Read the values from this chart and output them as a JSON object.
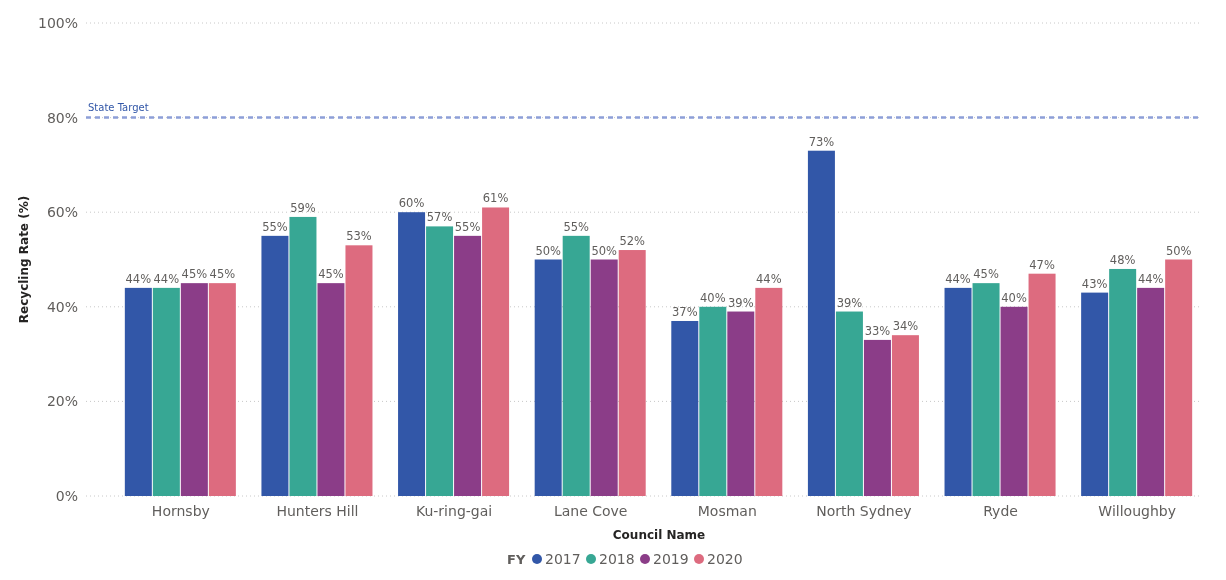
{
  "chart_data": {
    "type": "bar",
    "xlabel": "Council Name",
    "ylabel": "Recycling Rate (%)",
    "legend_title": "FY",
    "legend": "bottom",
    "grid": "y",
    "categories": [
      "Hornsby",
      "Hunters Hill",
      "Ku-ring-gai",
      "Lane Cove",
      "Mosman",
      "North Sydney",
      "Ryde",
      "Willoughby"
    ],
    "series": [
      {
        "name": "2017",
        "color": "#3257a8",
        "values": [
          44,
          55,
          60,
          50,
          37,
          73,
          44,
          43
        ],
        "value_labels": [
          "44%",
          "55%",
          "60%",
          "50%",
          "37%",
          "73%",
          "44%",
          "43%"
        ]
      },
      {
        "name": "2018",
        "color": "#37a794",
        "values": [
          44,
          59,
          57,
          55,
          40,
          39,
          45,
          48
        ],
        "value_labels": [
          "44%",
          "59%",
          "57%",
          "55%",
          "40%",
          "39%",
          "45%",
          "48%"
        ]
      },
      {
        "name": "2019",
        "color": "#8b3d88",
        "values": [
          45,
          45,
          55,
          50,
          39,
          33,
          40,
          44
        ],
        "value_labels": [
          "45%",
          "45%",
          "55%",
          "50%",
          "39%",
          "33%",
          "40%",
          "44%"
        ]
      },
      {
        "name": "2020",
        "color": "#dd6b7f",
        "values": [
          45,
          53,
          61,
          52,
          44,
          34,
          47,
          50
        ],
        "value_labels": [
          "45%",
          "53%",
          "61%",
          "52%",
          "44%",
          "34%",
          "47%",
          "50%"
        ]
      }
    ],
    "ylim": [
      0,
      100
    ],
    "yticks": [
      {
        "value": 0,
        "label": "0%"
      },
      {
        "value": 20,
        "label": "20%"
      },
      {
        "value": 40,
        "label": "40%"
      },
      {
        "value": 60,
        "label": "60%"
      },
      {
        "value": 80,
        "label": "80%"
      },
      {
        "value": 100,
        "label": "100%"
      }
    ],
    "ref_lines": [
      {
        "axis": "y",
        "value": 80,
        "label": "State Target",
        "color": "#8d9fd8",
        "line_style": "dashed"
      }
    ]
  }
}
